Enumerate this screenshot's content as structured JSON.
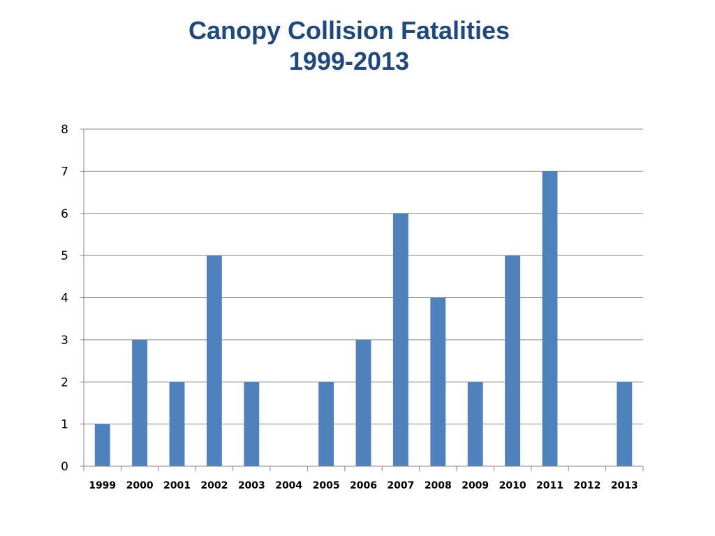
{
  "chart_data": {
    "type": "bar",
    "title": "Canopy Collision Fatalities",
    "subtitle": "1999-2013",
    "xlabel": "",
    "ylabel": "",
    "categories": [
      "1999",
      "2000",
      "2001",
      "2002",
      "2003",
      "2004",
      "2005",
      "2006",
      "2007",
      "2008",
      "2009",
      "2010",
      "2011",
      "2012",
      "2013"
    ],
    "values": [
      1,
      3,
      2,
      5,
      2,
      0,
      2,
      3,
      6,
      4,
      2,
      5,
      7,
      0,
      2
    ],
    "ylim": [
      0,
      8
    ],
    "yticks": [
      0,
      1,
      2,
      3,
      4,
      5,
      6,
      7,
      8
    ],
    "grid": true,
    "legend": "none",
    "colors": {
      "bar": "#4f81bd",
      "title": "#1f497d",
      "grid": "#868686"
    }
  }
}
